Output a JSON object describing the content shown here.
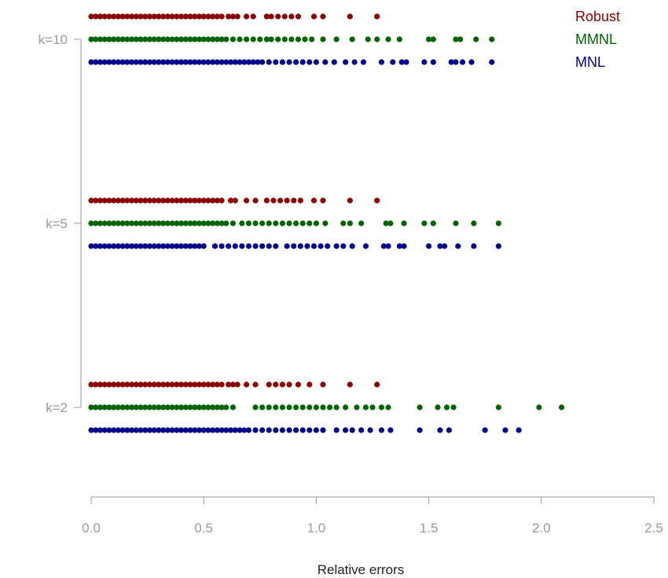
{
  "chart_data": {
    "type": "scatter",
    "title": "",
    "xlabel": "Relative errors",
    "ylabel": "",
    "xlim": [
      0,
      2.5
    ],
    "x_ticks": [
      "0.0",
      "0.5",
      "1.0",
      "1.5",
      "2.0",
      "2.5"
    ],
    "y_groups": [
      "k=2",
      "k=5",
      "k=10"
    ],
    "grid": false,
    "legend_position": "top-right",
    "series": [
      {
        "name": "Robust",
        "color": "#8b0000",
        "groups": [
          {
            "group": "k=10",
            "x": [
              0.0,
              0.02,
              0.04,
              0.06,
              0.08,
              0.1,
              0.12,
              0.14,
              0.16,
              0.18,
              0.2,
              0.22,
              0.24,
              0.26,
              0.28,
              0.3,
              0.32,
              0.34,
              0.36,
              0.38,
              0.4,
              0.42,
              0.44,
              0.46,
              0.48,
              0.5,
              0.52,
              0.54,
              0.56,
              0.58,
              0.61,
              0.63,
              0.65,
              0.69,
              0.72,
              0.78,
              0.8,
              0.83,
              0.86,
              0.89,
              0.92,
              0.99,
              1.03,
              1.15,
              1.27
            ]
          },
          {
            "group": "k=5",
            "x": [
              0.0,
              0.02,
              0.04,
              0.06,
              0.08,
              0.1,
              0.12,
              0.14,
              0.16,
              0.18,
              0.2,
              0.22,
              0.24,
              0.26,
              0.28,
              0.3,
              0.32,
              0.34,
              0.36,
              0.38,
              0.4,
              0.42,
              0.44,
              0.46,
              0.48,
              0.5,
              0.52,
              0.54,
              0.56,
              0.58,
              0.62,
              0.64,
              0.69,
              0.73,
              0.78,
              0.81,
              0.84,
              0.87,
              0.9,
              0.93,
              0.99,
              1.03,
              1.15,
              1.27
            ]
          },
          {
            "group": "k=2",
            "x": [
              0.0,
              0.02,
              0.04,
              0.06,
              0.08,
              0.1,
              0.12,
              0.14,
              0.16,
              0.18,
              0.2,
              0.22,
              0.24,
              0.26,
              0.28,
              0.3,
              0.32,
              0.34,
              0.36,
              0.38,
              0.4,
              0.42,
              0.44,
              0.46,
              0.48,
              0.5,
              0.52,
              0.54,
              0.56,
              0.58,
              0.61,
              0.63,
              0.65,
              0.69,
              0.73,
              0.79,
              0.82,
              0.85,
              0.88,
              0.92,
              0.97,
              1.03,
              1.15,
              1.27
            ]
          }
        ]
      },
      {
        "name": "MMNL",
        "color": "#006400",
        "groups": [
          {
            "group": "k=10",
            "x": [
              0.0,
              0.02,
              0.04,
              0.06,
              0.08,
              0.1,
              0.12,
              0.14,
              0.16,
              0.18,
              0.2,
              0.22,
              0.24,
              0.26,
              0.28,
              0.3,
              0.32,
              0.34,
              0.36,
              0.38,
              0.4,
              0.42,
              0.44,
              0.46,
              0.48,
              0.5,
              0.52,
              0.54,
              0.56,
              0.58,
              0.6,
              0.63,
              0.66,
              0.69,
              0.72,
              0.75,
              0.78,
              0.8,
              0.83,
              0.86,
              0.89,
              0.92,
              0.95,
              0.98,
              1.03,
              1.09,
              1.16,
              1.23,
              1.27,
              1.32,
              1.37,
              1.5,
              1.52,
              1.62,
              1.64,
              1.71,
              1.78
            ]
          },
          {
            "group": "k=5",
            "x": [
              0.0,
              0.02,
              0.04,
              0.06,
              0.08,
              0.1,
              0.12,
              0.14,
              0.16,
              0.18,
              0.2,
              0.22,
              0.24,
              0.26,
              0.28,
              0.3,
              0.32,
              0.34,
              0.36,
              0.38,
              0.4,
              0.42,
              0.44,
              0.46,
              0.48,
              0.5,
              0.52,
              0.54,
              0.56,
              0.58,
              0.6,
              0.63,
              0.67,
              0.7,
              0.73,
              0.76,
              0.79,
              0.82,
              0.85,
              0.88,
              0.91,
              0.94,
              0.97,
              1.0,
              1.04,
              1.12,
              1.15,
              1.2,
              1.31,
              1.33,
              1.39,
              1.48,
              1.52,
              1.62,
              1.7,
              1.81
            ]
          },
          {
            "group": "k=2",
            "x": [
              0.0,
              0.02,
              0.04,
              0.06,
              0.08,
              0.1,
              0.12,
              0.14,
              0.16,
              0.18,
              0.2,
              0.22,
              0.24,
              0.26,
              0.28,
              0.3,
              0.32,
              0.34,
              0.36,
              0.38,
              0.4,
              0.42,
              0.44,
              0.46,
              0.48,
              0.5,
              0.52,
              0.54,
              0.56,
              0.58,
              0.6,
              0.63,
              0.73,
              0.76,
              0.79,
              0.82,
              0.85,
              0.88,
              0.91,
              0.94,
              0.97,
              1.0,
              1.03,
              1.06,
              1.09,
              1.13,
              1.18,
              1.22,
              1.25,
              1.29,
              1.32,
              1.46,
              1.54,
              1.58,
              1.61,
              1.81,
              1.99,
              2.09
            ]
          }
        ]
      },
      {
        "name": "MNL",
        "color": "#00008b",
        "groups": [
          {
            "group": "k=10",
            "x": [
              0.0,
              0.02,
              0.04,
              0.06,
              0.08,
              0.1,
              0.12,
              0.14,
              0.16,
              0.18,
              0.2,
              0.22,
              0.24,
              0.26,
              0.28,
              0.3,
              0.32,
              0.34,
              0.36,
              0.38,
              0.4,
              0.42,
              0.44,
              0.46,
              0.48,
              0.5,
              0.52,
              0.54,
              0.56,
              0.58,
              0.6,
              0.62,
              0.64,
              0.66,
              0.68,
              0.7,
              0.72,
              0.74,
              0.76,
              0.79,
              0.82,
              0.85,
              0.88,
              0.91,
              0.94,
              0.97,
              1.0,
              1.04,
              1.08,
              1.13,
              1.17,
              1.21,
              1.29,
              1.34,
              1.38,
              1.4,
              1.48,
              1.52,
              1.6,
              1.62,
              1.65,
              1.69,
              1.78
            ]
          },
          {
            "group": "k=5",
            "x": [
              0.0,
              0.02,
              0.04,
              0.06,
              0.08,
              0.1,
              0.12,
              0.14,
              0.16,
              0.18,
              0.2,
              0.22,
              0.24,
              0.26,
              0.28,
              0.3,
              0.32,
              0.34,
              0.36,
              0.38,
              0.4,
              0.42,
              0.44,
              0.46,
              0.48,
              0.5,
              0.55,
              0.58,
              0.61,
              0.64,
              0.67,
              0.7,
              0.73,
              0.76,
              0.79,
              0.82,
              0.87,
              0.9,
              0.93,
              0.96,
              0.99,
              1.02,
              1.05,
              1.09,
              1.12,
              1.16,
              1.22,
              1.3,
              1.32,
              1.37,
              1.39,
              1.5,
              1.55,
              1.57,
              1.63,
              1.7,
              1.81
            ]
          },
          {
            "group": "k=2",
            "x": [
              0.0,
              0.02,
              0.04,
              0.06,
              0.08,
              0.1,
              0.12,
              0.14,
              0.16,
              0.18,
              0.2,
              0.22,
              0.24,
              0.26,
              0.28,
              0.3,
              0.32,
              0.34,
              0.36,
              0.38,
              0.4,
              0.42,
              0.44,
              0.46,
              0.48,
              0.5,
              0.52,
              0.54,
              0.56,
              0.58,
              0.6,
              0.62,
              0.64,
              0.66,
              0.68,
              0.7,
              0.73,
              0.76,
              0.79,
              0.82,
              0.85,
              0.88,
              0.91,
              0.94,
              0.97,
              1.0,
              1.03,
              1.09,
              1.13,
              1.16,
              1.2,
              1.24,
              1.29,
              1.33,
              1.46,
              1.55,
              1.59,
              1.75,
              1.84,
              1.9
            ]
          }
        ]
      }
    ]
  }
}
